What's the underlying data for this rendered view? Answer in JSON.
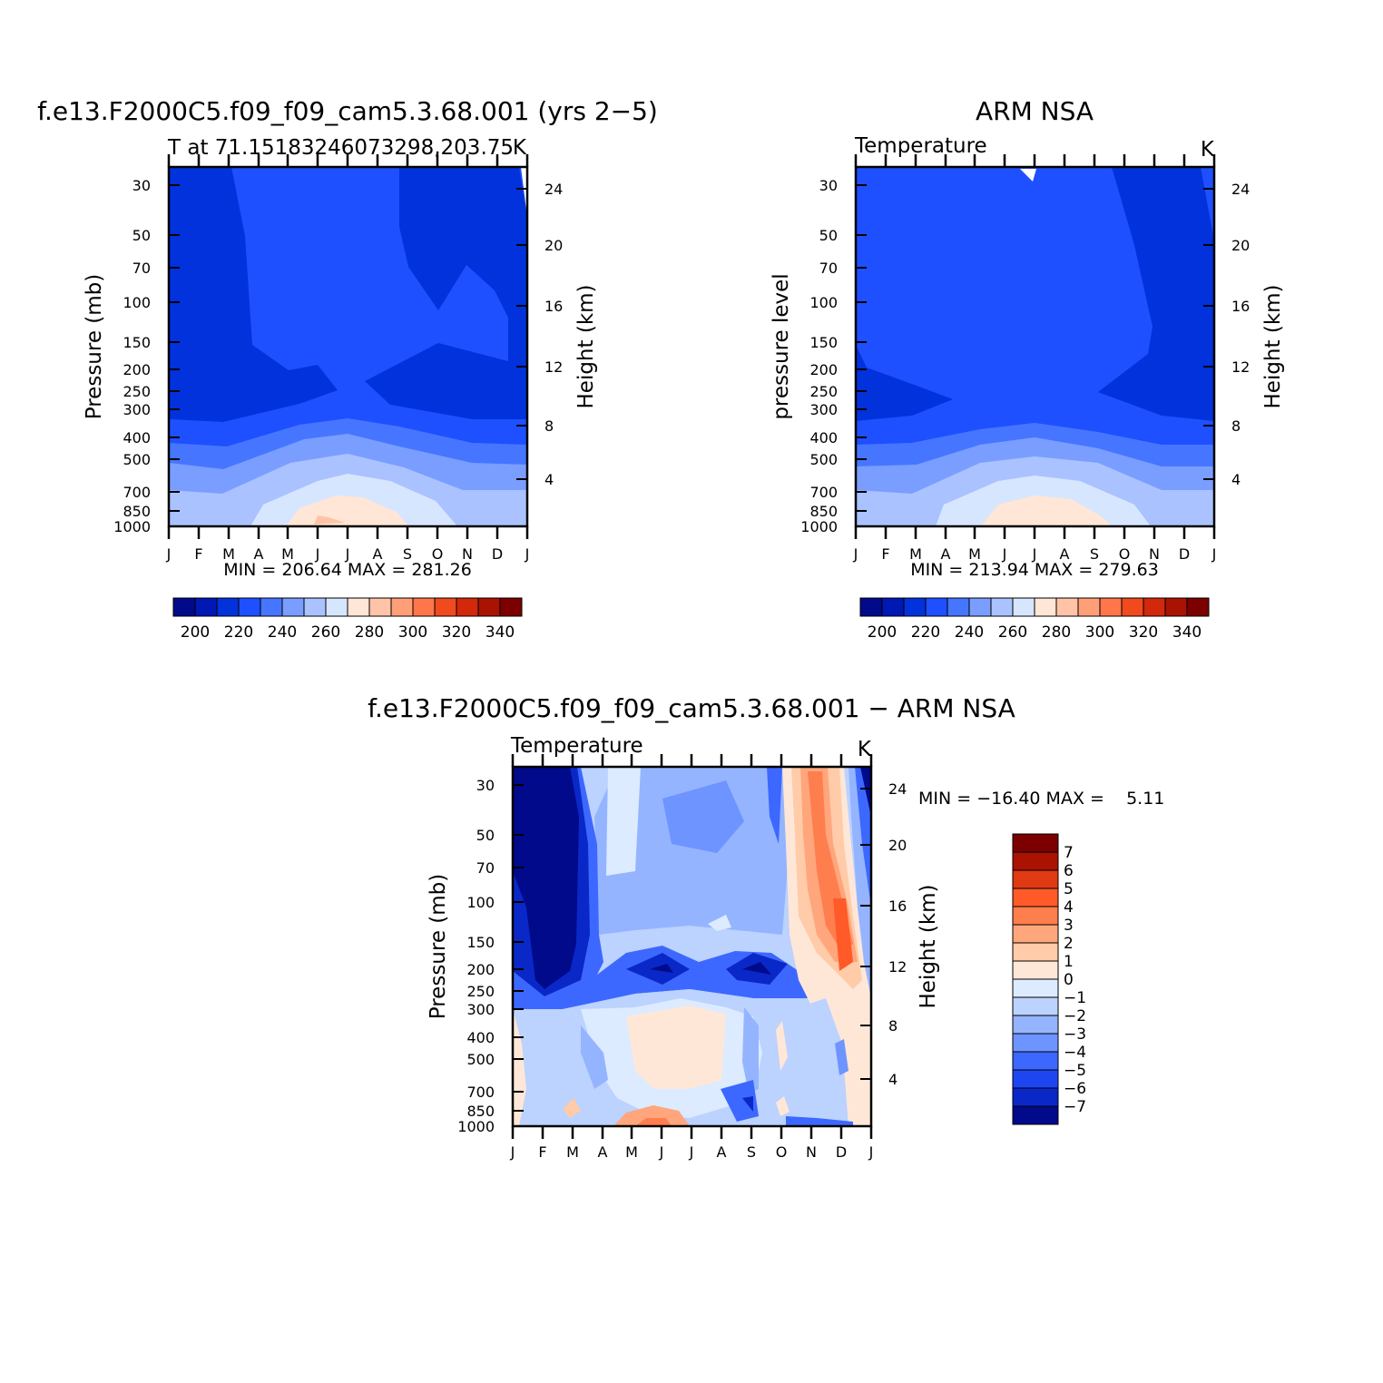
{
  "chart_data": [
    {
      "type": "heatmap",
      "title": "f.e13.F2000C5.f09_f09_cam5.3.68.001 (yrs 2−5)",
      "subtitle_left": "T at 71.15183246073298,203.75",
      "subtitle_right": "K",
      "ylabel": "Pressure (mb)",
      "y2label": "Height (km)",
      "x_ticks": [
        "J",
        "F",
        "M",
        "A",
        "M",
        "J",
        "J",
        "A",
        "S",
        "O",
        "N",
        "D",
        "J"
      ],
      "y_ticks": [
        "30",
        "50",
        "70",
        "100",
        "150",
        "200",
        "250",
        "300",
        "400",
        "500",
        "700",
        "850",
        "1000"
      ],
      "y2_ticks": [
        "24",
        "20",
        "16",
        "12",
        "8",
        "4"
      ],
      "stats": "MIN = 206.64 MAX = 281.26",
      "z_range": [
        206.64,
        281.26
      ],
      "colorbar_labels": [
        "200",
        "220",
        "240",
        "260",
        "280",
        "300",
        "320",
        "340"
      ]
    },
    {
      "type": "heatmap",
      "title": "ARM NSA",
      "subtitle_left": "Temperature",
      "subtitle_right": "K",
      "ylabel": "pressure level",
      "y2label": "Height (km)",
      "x_ticks": [
        "J",
        "F",
        "M",
        "A",
        "M",
        "J",
        "J",
        "A",
        "S",
        "O",
        "N",
        "D",
        "J"
      ],
      "y_ticks": [
        "30",
        "50",
        "70",
        "100",
        "150",
        "200",
        "250",
        "300",
        "400",
        "500",
        "700",
        "850",
        "1000"
      ],
      "y2_ticks": [
        "24",
        "20",
        "16",
        "12",
        "8",
        "4"
      ],
      "stats": "MIN = 213.94 MAX = 279.63",
      "z_range": [
        213.94,
        279.63
      ],
      "colorbar_labels": [
        "200",
        "220",
        "240",
        "260",
        "280",
        "300",
        "320",
        "340"
      ]
    },
    {
      "type": "heatmap",
      "title": "f.e13.F2000C5.f09_f09_cam5.3.68.001 − ARM NSA",
      "subtitle_left": "Temperature",
      "subtitle_right": "K",
      "ylabel": "Pressure (mb)",
      "y2label": "Height (km)",
      "x_ticks": [
        "J",
        "F",
        "M",
        "A",
        "M",
        "J",
        "J",
        "A",
        "S",
        "O",
        "N",
        "D",
        "J"
      ],
      "y_ticks": [
        "30",
        "50",
        "70",
        "100",
        "150",
        "200",
        "250",
        "300",
        "400",
        "500",
        "700",
        "850",
        "1000"
      ],
      "y2_ticks": [
        "24",
        "20",
        "16",
        "12",
        "8",
        "4"
      ],
      "stats": "MIN = −16.40 MAX =    5.11",
      "z_range": [
        -16.4,
        5.11
      ],
      "colorbar_labels": [
        "7",
        "6",
        "5",
        "4",
        "3",
        "2",
        "1",
        "0",
        "−1",
        "−2",
        "−3",
        "−4",
        "−5",
        "−6",
        "−7"
      ]
    }
  ],
  "colors": {
    "abs_scale": [
      "#000a8a",
      "#0018b4",
      "#0232dc",
      "#1e50ff",
      "#4676ff",
      "#7a9eff",
      "#aac2ff",
      "#d7e6ff",
      "#ffe6d6",
      "#ffc4a8",
      "#ff9f78",
      "#ff764a",
      "#f04a1e",
      "#d2280c",
      "#aa1202",
      "#7c0000"
    ],
    "diff_scale": [
      "#7c0000",
      "#aa1202",
      "#e03a12",
      "#ff5a28",
      "#ff7e4e",
      "#ffa67c",
      "#ffcba8",
      "#ffe7d8",
      "#dcebff",
      "#bcd2ff",
      "#95b4ff",
      "#6e94ff",
      "#3c68ff",
      "#1e46f0",
      "#0a28c8",
      "#000a8a"
    ]
  }
}
